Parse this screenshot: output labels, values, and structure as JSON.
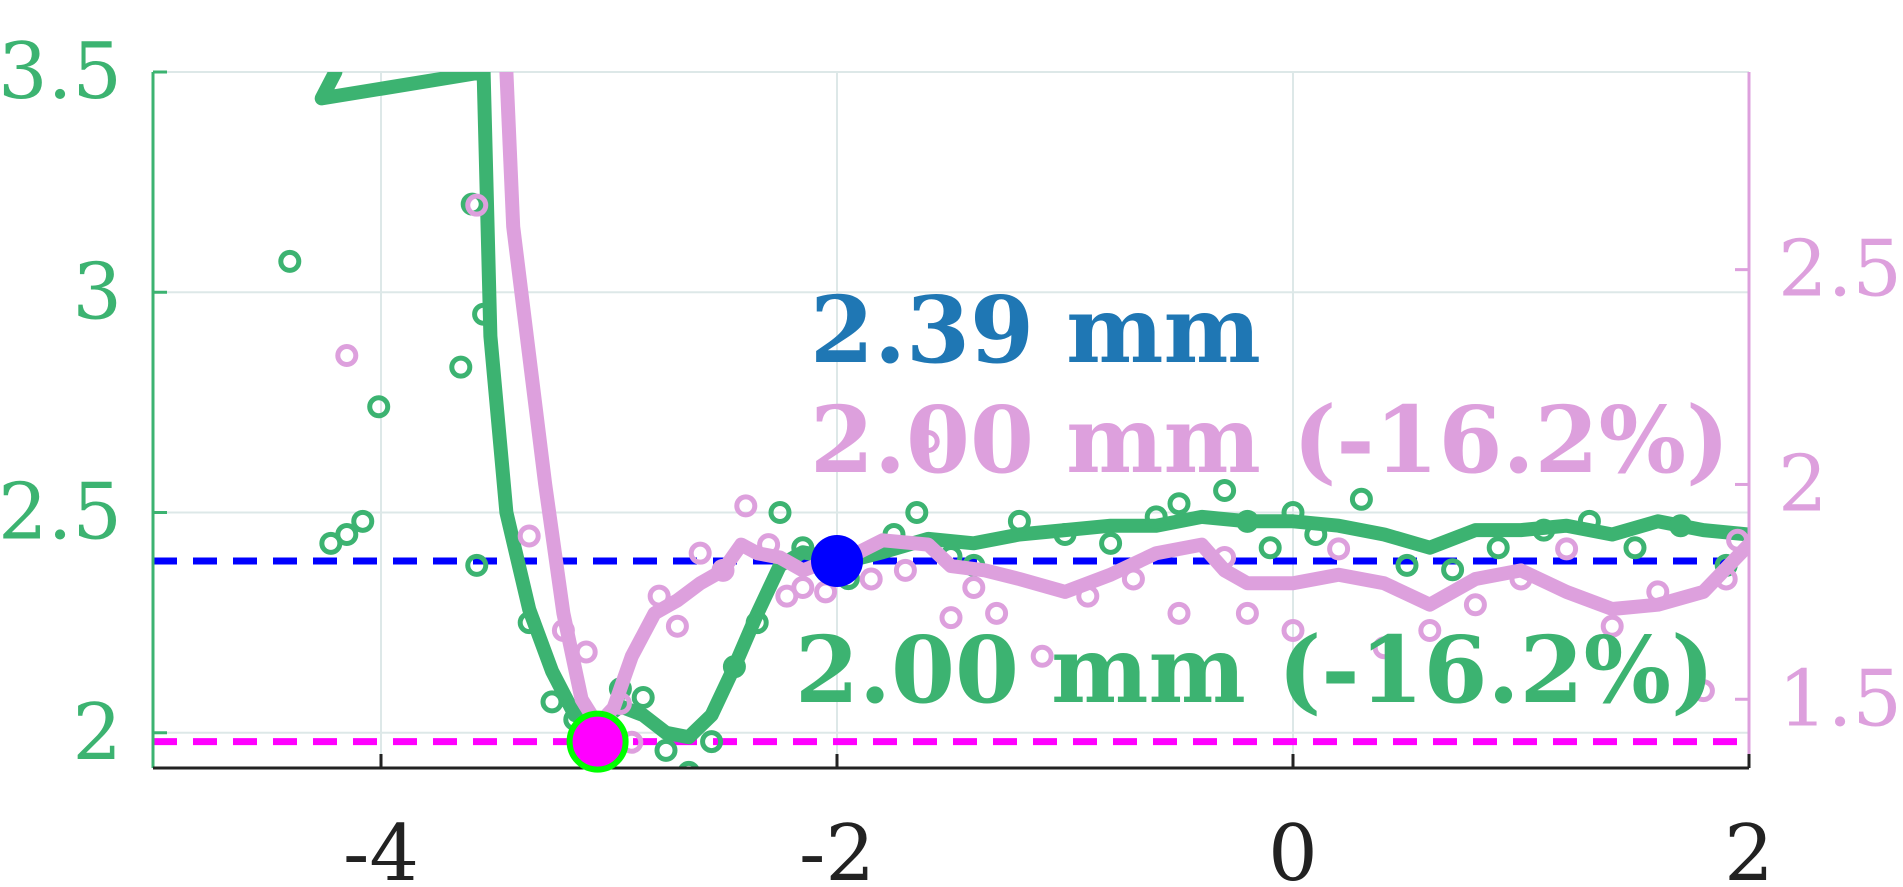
{
  "chart_data": {
    "type": "line",
    "title": "",
    "xlabel": "",
    "ylabel": "",
    "xlim": [
      -5,
      2
    ],
    "ylim_left": [
      1.92,
      3.5
    ],
    "ylim_right": [
      1.34,
      2.96
    ],
    "grid": true,
    "x_ticks": [
      {
        "value": -4,
        "label": "-4"
      },
      {
        "value": -2,
        "label": "-2"
      },
      {
        "value": 0,
        "label": "0"
      },
      {
        "value": 2,
        "label": "2"
      }
    ],
    "y_left_ticks": [
      {
        "value": 2,
        "label": "2"
      },
      {
        "value": 2.5,
        "label": "2.5"
      },
      {
        "value": 3,
        "label": "3"
      },
      {
        "value": 3.5,
        "label": "3.5"
      }
    ],
    "y_right_ticks": [
      {
        "value": 1.5,
        "label": "1.5"
      },
      {
        "value": 2,
        "label": "2"
      },
      {
        "value": 2.5,
        "label": "2.5"
      }
    ],
    "colors": {
      "green": "#3cb371",
      "pink": "#dda0dd",
      "blue_ref": "#0000ff",
      "magenta_ref": "#ff00ff",
      "annot_blue": "#1f77b4",
      "axis": "#222222",
      "grid": "#dde8e8",
      "min_marker_edge": "#00ff00"
    },
    "series": [
      {
        "axis": "left",
        "color": "green",
        "line": [
          [
            -4.2,
            3.5
          ],
          [
            -4.26,
            3.44
          ],
          [
            -3.55,
            3.5
          ],
          [
            -3.52,
            2.9
          ],
          [
            -3.45,
            2.5
          ],
          [
            -3.35,
            2.28
          ],
          [
            -3.25,
            2.14
          ],
          [
            -3.15,
            2.04
          ],
          [
            -3.05,
            2.02
          ],
          [
            -2.95,
            2.06
          ],
          [
            -2.85,
            2.04
          ],
          [
            -2.75,
            2.0
          ],
          [
            -2.65,
            1.99
          ],
          [
            -2.55,
            2.04
          ],
          [
            -2.45,
            2.15
          ],
          [
            -2.35,
            2.27
          ],
          [
            -2.25,
            2.38
          ],
          [
            -2.15,
            2.41
          ],
          [
            -2.05,
            2.4
          ],
          [
            -1.95,
            2.39
          ],
          [
            -1.8,
            2.41
          ],
          [
            -1.6,
            2.44
          ],
          [
            -1.4,
            2.43
          ],
          [
            -1.2,
            2.45
          ],
          [
            -1.0,
            2.46
          ],
          [
            -0.8,
            2.47
          ],
          [
            -0.6,
            2.47
          ],
          [
            -0.4,
            2.49
          ],
          [
            -0.2,
            2.48
          ],
          [
            0.0,
            2.48
          ],
          [
            0.2,
            2.47
          ],
          [
            0.4,
            2.45
          ],
          [
            0.6,
            2.42
          ],
          [
            0.8,
            2.46
          ],
          [
            1.0,
            2.46
          ],
          [
            1.2,
            2.47
          ],
          [
            1.4,
            2.45
          ],
          [
            1.6,
            2.48
          ],
          [
            1.8,
            2.46
          ],
          [
            2.0,
            2.45
          ]
        ],
        "points": [
          [
            -4.4,
            3.07
          ],
          [
            -4.22,
            2.43
          ],
          [
            -4.15,
            2.45
          ],
          [
            -4.08,
            2.48
          ],
          [
            -4.01,
            2.74
          ],
          [
            -3.65,
            2.83
          ],
          [
            -3.6,
            3.2
          ],
          [
            -3.55,
            2.95
          ],
          [
            -3.58,
            2.38
          ],
          [
            -3.35,
            2.25
          ],
          [
            -3.25,
            2.07
          ],
          [
            -3.15,
            2.03
          ],
          [
            -3.05,
            1.9
          ],
          [
            -2.95,
            2.1
          ],
          [
            -2.85,
            2.08
          ],
          [
            -2.75,
            1.96
          ],
          [
            -2.65,
            1.91
          ],
          [
            -2.55,
            1.98
          ],
          [
            -2.45,
            2.15
          ],
          [
            -2.35,
            2.25
          ],
          [
            -2.25,
            2.5
          ],
          [
            -2.15,
            2.42
          ],
          [
            -2.05,
            2.38
          ],
          [
            -1.95,
            2.35
          ],
          [
            -1.75,
            2.45
          ],
          [
            -1.65,
            2.5
          ],
          [
            -1.5,
            2.4
          ],
          [
            -1.4,
            2.38
          ],
          [
            -1.2,
            2.48
          ],
          [
            -1.0,
            2.45
          ],
          [
            -0.8,
            2.43
          ],
          [
            -0.6,
            2.49
          ],
          [
            -0.5,
            2.52
          ],
          [
            -0.3,
            2.55
          ],
          [
            -0.2,
            2.48
          ],
          [
            -0.1,
            2.42
          ],
          [
            0.0,
            2.5
          ],
          [
            0.1,
            2.45
          ],
          [
            0.3,
            2.53
          ],
          [
            0.5,
            2.38
          ],
          [
            0.7,
            2.37
          ],
          [
            0.9,
            2.42
          ],
          [
            1.1,
            2.46
          ],
          [
            1.3,
            2.48
          ],
          [
            1.5,
            2.42
          ],
          [
            1.7,
            2.47
          ],
          [
            1.9,
            2.38
          ]
        ],
        "min_point": [
          -3.05,
          1.98
        ]
      },
      {
        "axis": "right",
        "color": "pink",
        "line": [
          [
            -3.45,
            2.96
          ],
          [
            -3.42,
            2.6
          ],
          [
            -3.35,
            2.3
          ],
          [
            -3.28,
            2.0
          ],
          [
            -3.2,
            1.7
          ],
          [
            -3.12,
            1.5
          ],
          [
            -3.05,
            1.44
          ],
          [
            -2.98,
            1.48
          ],
          [
            -2.9,
            1.6
          ],
          [
            -2.8,
            1.7
          ],
          [
            -2.7,
            1.73
          ],
          [
            -2.6,
            1.77
          ],
          [
            -2.5,
            1.8
          ],
          [
            -2.42,
            1.86
          ],
          [
            -2.35,
            1.84
          ],
          [
            -2.25,
            1.83
          ],
          [
            -2.15,
            1.8
          ],
          [
            -2.05,
            1.82
          ],
          [
            -1.95,
            1.83
          ],
          [
            -1.8,
            1.87
          ],
          [
            -1.6,
            1.86
          ],
          [
            -1.5,
            1.81
          ],
          [
            -1.35,
            1.8
          ],
          [
            -1.2,
            1.78
          ],
          [
            -1.0,
            1.75
          ],
          [
            -0.8,
            1.79
          ],
          [
            -0.6,
            1.84
          ],
          [
            -0.4,
            1.86
          ],
          [
            -0.3,
            1.8
          ],
          [
            -0.2,
            1.77
          ],
          [
            0.0,
            1.77
          ],
          [
            0.2,
            1.79
          ],
          [
            0.4,
            1.77
          ],
          [
            0.6,
            1.72
          ],
          [
            0.8,
            1.78
          ],
          [
            1.0,
            1.8
          ],
          [
            1.2,
            1.75
          ],
          [
            1.4,
            1.71
          ],
          [
            1.6,
            1.72
          ],
          [
            1.8,
            1.75
          ],
          [
            2.0,
            1.86
          ]
        ],
        "points": [
          [
            -4.15,
            2.3
          ],
          [
            -3.58,
            2.65
          ],
          [
            -3.35,
            1.88
          ],
          [
            -3.2,
            1.66
          ],
          [
            -3.1,
            1.61
          ],
          [
            -3.0,
            1.44
          ],
          [
            -2.95,
            1.49
          ],
          [
            -2.9,
            1.4
          ],
          [
            -2.78,
            1.74
          ],
          [
            -2.7,
            1.67
          ],
          [
            -2.6,
            1.84
          ],
          [
            -2.5,
            1.8
          ],
          [
            -2.4,
            1.95
          ],
          [
            -2.3,
            1.86
          ],
          [
            -2.22,
            1.74
          ],
          [
            -2.15,
            1.76
          ],
          [
            -2.05,
            1.75
          ],
          [
            -1.85,
            1.78
          ],
          [
            -1.7,
            1.8
          ],
          [
            -1.6,
            2.1
          ],
          [
            -1.5,
            1.69
          ],
          [
            -1.4,
            1.76
          ],
          [
            -1.3,
            1.7
          ],
          [
            -1.1,
            1.6
          ],
          [
            -0.9,
            1.74
          ],
          [
            -0.7,
            1.78
          ],
          [
            -0.5,
            1.7
          ],
          [
            -0.3,
            1.83
          ],
          [
            -0.2,
            1.7
          ],
          [
            0.0,
            1.66
          ],
          [
            0.2,
            1.85
          ],
          [
            0.4,
            1.62
          ],
          [
            0.6,
            1.66
          ],
          [
            0.8,
            1.72
          ],
          [
            1.0,
            1.78
          ],
          [
            1.2,
            1.85
          ],
          [
            1.4,
            1.67
          ],
          [
            1.6,
            1.75
          ],
          [
            1.8,
            1.52
          ],
          [
            1.9,
            1.78
          ],
          [
            1.95,
            1.87
          ]
        ]
      }
    ],
    "reference_lines": [
      {
        "axis": "left",
        "y": 2.39,
        "color": "blue_ref",
        "style": "dashed"
      },
      {
        "axis": "left",
        "y": 1.98,
        "color": "magenta_ref",
        "style": "dashed"
      }
    ],
    "reference_marker": {
      "axis": "left",
      "x": -2.0,
      "y": 2.39,
      "color": "blue_ref"
    },
    "annotations": [
      {
        "id": "ref",
        "text": "2.39 mm",
        "color": "annot_blue"
      },
      {
        "id": "pink",
        "text": "2.00 mm (-16.2%)",
        "color": "pink"
      },
      {
        "id": "green",
        "text": "2.00 mm (-16.2%)",
        "color": "green"
      }
    ]
  }
}
